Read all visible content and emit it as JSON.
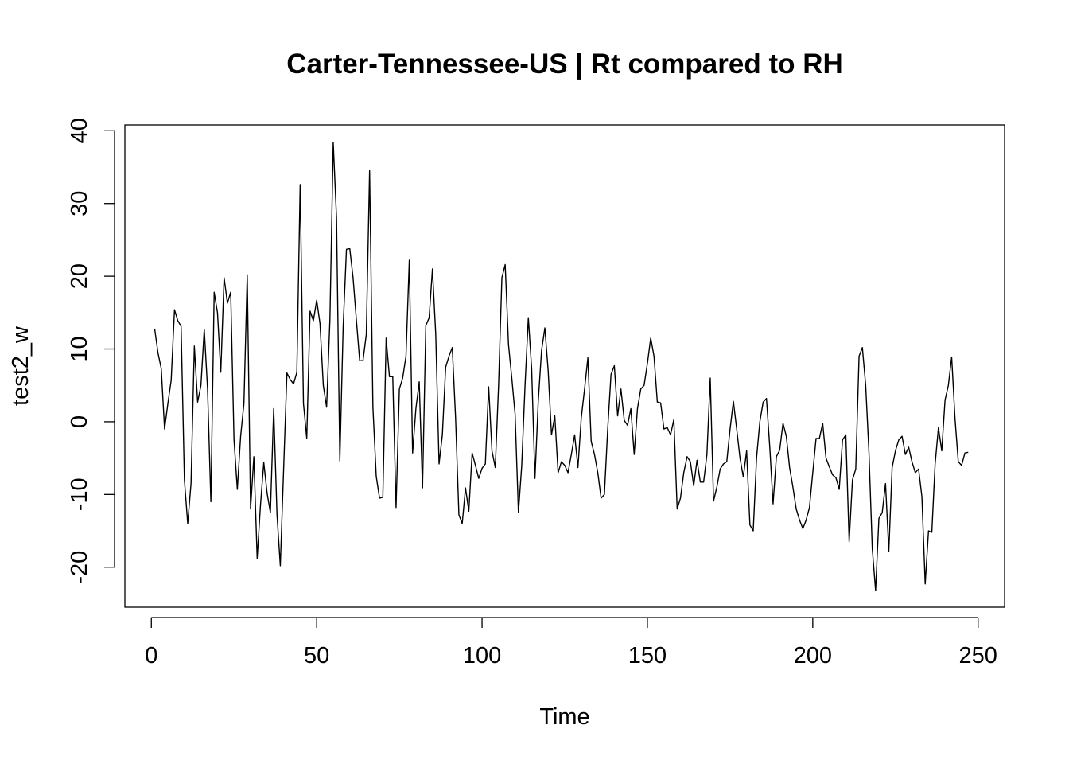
{
  "chart_data": {
    "type": "line",
    "title": "Carter-Tennessee-US | Rt compared to RH",
    "xlabel": "Time",
    "ylabel": "test2_w",
    "xlim": [
      -8,
      258
    ],
    "ylim": [
      -25.5,
      40.8
    ],
    "x_ticks": [
      0,
      50,
      100,
      150,
      200,
      250
    ],
    "y_ticks": [
      -20,
      -10,
      0,
      10,
      20,
      30,
      40
    ],
    "grid": false,
    "legend": "none",
    "line_color": "#000000",
    "x_start": 1,
    "series": [
      {
        "values": [
          12.8,
          9.5,
          7.3,
          -1.0,
          2.5,
          5.7,
          15.4,
          13.9,
          13.1,
          -8.0,
          -14.0,
          -8.5,
          10.4,
          2.7,
          5.0,
          12.7,
          4.5,
          -11.0,
          17.8,
          15.0,
          6.8,
          19.8,
          16.3,
          17.8,
          -2.5,
          -9.3,
          -2.0,
          2.5,
          20.2,
          -12.0,
          -4.8,
          -18.8,
          -11.5,
          -5.6,
          -9.8,
          -12.5,
          1.8,
          -12.8,
          -19.8,
          -6.5,
          6.7,
          5.8,
          5.2,
          6.8,
          32.6,
          2.5,
          -2.3,
          15.2,
          13.9,
          16.7,
          13.5,
          5.0,
          2.0,
          14.0,
          38.4,
          28.0,
          -5.4,
          13.0,
          23.7,
          23.8,
          19.8,
          14.0,
          8.4,
          8.4,
          12.0,
          34.5,
          2.0,
          -7.5,
          -10.5,
          -10.4,
          11.5,
          6.2,
          6.2,
          -11.8,
          4.5,
          6.0,
          9.0,
          22.2,
          -4.3,
          1.8,
          5.5,
          -9.1,
          13.2,
          14.3,
          21.0,
          12.0,
          -5.8,
          -1.8,
          7.5,
          9.0,
          10.2,
          0.5,
          -12.8,
          -14.0,
          -9.1,
          -12.3,
          -4.3,
          -6.0,
          -7.8,
          -6.4,
          -5.8,
          4.8,
          -4.0,
          -6.3,
          5.0,
          19.8,
          21.6,
          10.6,
          6.0,
          1.0,
          -12.5,
          -6.0,
          5.0,
          14.3,
          7.3,
          -7.8,
          2.8,
          9.8,
          12.9,
          7.0,
          -1.8,
          0.8,
          -7.0,
          -5.5,
          -6.0,
          -7.0,
          -4.5,
          -1.8,
          -6.3,
          0.5,
          4.5,
          8.8,
          -2.7,
          -4.5,
          -7.0,
          -10.5,
          -10.0,
          -1.0,
          6.5,
          7.7,
          0.8,
          4.5,
          0.2,
          -0.5,
          1.8,
          -4.5,
          1.8,
          4.5,
          5.0,
          8.0,
          11.5,
          9.0,
          2.7,
          2.6,
          -1.0,
          -0.8,
          -1.8,
          0.3,
          -12.0,
          -10.5,
          -7.0,
          -4.8,
          -5.5,
          -8.8,
          -5.3,
          -8.3,
          -8.3,
          -4.5,
          6.0,
          -10.9,
          -9.0,
          -6.5,
          -5.8,
          -5.5,
          -1.0,
          2.8,
          -1.0,
          -5.0,
          -7.6,
          -4.0,
          -14.2,
          -15.0,
          -5.0,
          0.0,
          2.7,
          3.2,
          -3.5,
          -11.3,
          -4.8,
          -3.9,
          -0.2,
          -2.0,
          -6.3,
          -9.0,
          -12.0,
          -13.5,
          -14.7,
          -13.5,
          -11.8,
          -7.0,
          -2.3,
          -2.3,
          -0.2,
          -5.0,
          -6.2,
          -7.3,
          -7.7,
          -9.3,
          -2.5,
          -1.8,
          -16.5,
          -8.0,
          -6.5,
          9.0,
          10.2,
          5.0,
          -4.3,
          -17.5,
          -23.2,
          -13.3,
          -12.5,
          -8.5,
          -17.8,
          -6.3,
          -4.0,
          -2.5,
          -2.0,
          -4.5,
          -3.5,
          -5.5,
          -7.0,
          -6.5,
          -10.3,
          -22.3,
          -15.0,
          -15.2,
          -5.8,
          -0.8,
          -4.0,
          3.0,
          5.0,
          8.9,
          0.5,
          -5.5,
          -6.0,
          -4.3,
          -4.2
        ]
      }
    ]
  }
}
